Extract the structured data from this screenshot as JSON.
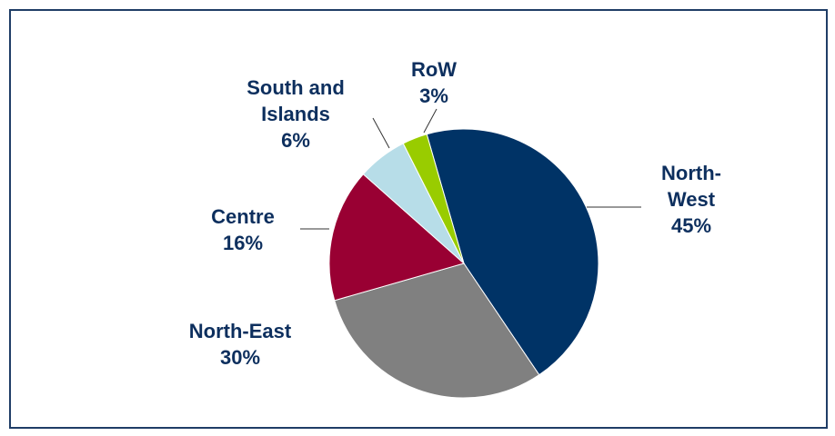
{
  "chart_data": {
    "type": "pie",
    "categories": [
      "North-West",
      "North-East",
      "Centre",
      "South and Islands",
      "RoW"
    ],
    "values": [
      45,
      30,
      16,
      6,
      3
    ],
    "value_labels": [
      "45%",
      "30%",
      "16%",
      "6%",
      "3%"
    ],
    "colors": [
      "#003366",
      "#808080",
      "#990033",
      "#b7dde8",
      "#99cc00"
    ]
  }
}
